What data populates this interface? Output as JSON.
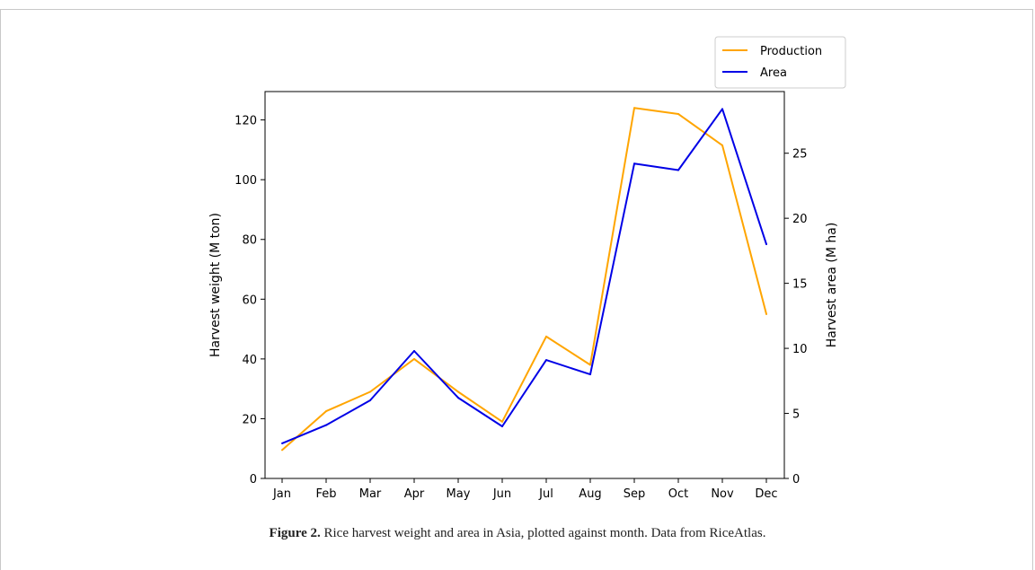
{
  "chart_data": {
    "type": "line",
    "categories": [
      "Jan",
      "Feb",
      "Mar",
      "Apr",
      "May",
      "Jun",
      "Jul",
      "Aug",
      "Sep",
      "Oct",
      "Nov",
      "Dec"
    ],
    "series": [
      {
        "name": "Production",
        "axis": "left",
        "color": "#ffa500",
        "values": [
          9.5,
          22.5,
          29,
          40,
          29,
          19,
          47.5,
          38,
          124,
          122,
          111.5,
          55
        ]
      },
      {
        "name": "Area",
        "axis": "right",
        "color": "#0000e6",
        "values": [
          2.7,
          4.1,
          6.0,
          9.8,
          6.2,
          4.0,
          9.1,
          8.0,
          24.2,
          23.7,
          28.4,
          18.0
        ]
      }
    ],
    "ylabel_left": "Harvest weight (M ton)",
    "ylabel_right": "Harvest area (M ha)",
    "ylim_left": [
      0,
      129.5
    ],
    "ylim_right": [
      0,
      29.74
    ],
    "yticks_left": [
      0,
      20,
      40,
      60,
      80,
      100,
      120
    ],
    "yticks_right": [
      0,
      5,
      10,
      15,
      20,
      25
    ],
    "grid": false,
    "legend_position": "upper-right, outside above axes"
  },
  "caption": {
    "label": "Figure 2.",
    "text": " Rice harvest weight and area in Asia, plotted against month. Data from RiceAtlas."
  }
}
